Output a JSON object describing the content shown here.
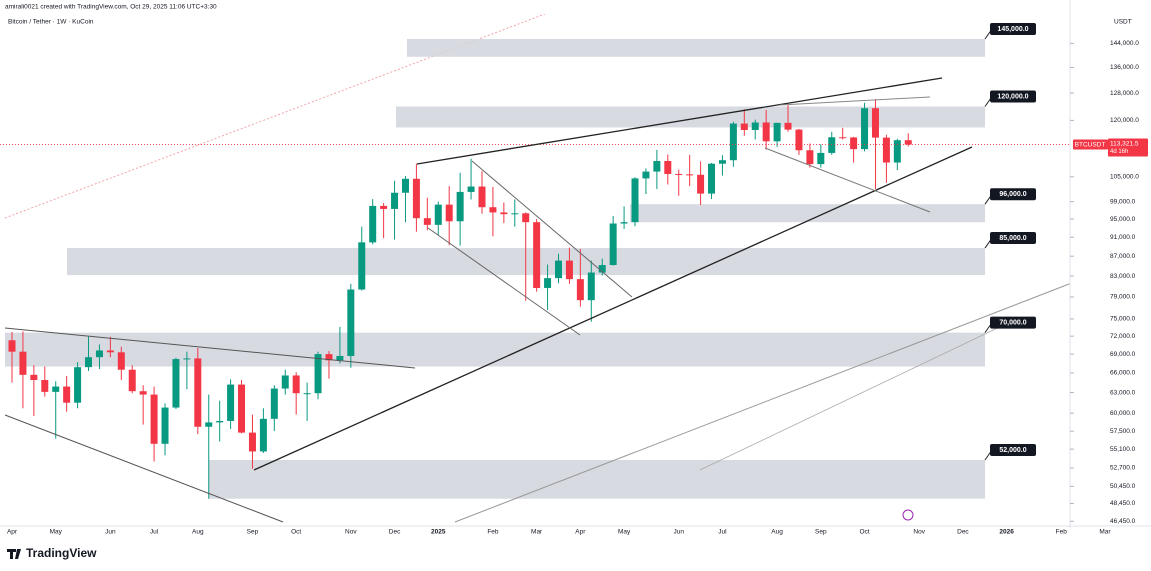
{
  "header": "amirali0021 created with TradingView.com, Oct 29, 2025 11:06 UTC+3:30",
  "brand": "TradingView",
  "chart_data": {
    "type": "candlestick",
    "title": "Bitcoin / Tether · 1W · KuCoin",
    "y_unit": "USDT",
    "symbol": "BTCUSDT",
    "last_price_label": "113,321.5",
    "countdown": "4d 16h",
    "log_scale": true,
    "colors": {
      "up": "#089981",
      "down": "#f23645",
      "zone": "#d1d4dc"
    },
    "ylim": [
      45500,
      154000
    ],
    "yticks": [
      {
        "value": 144000,
        "label": "144,000.0"
      },
      {
        "value": 136000,
        "label": "136,000.0"
      },
      {
        "value": 128000,
        "label": "128,000.0"
      },
      {
        "value": 120000,
        "label": "120,000.0"
      },
      {
        "value": 105000,
        "label": "105,000.0"
      },
      {
        "value": 99000,
        "label": "99,000.0"
      },
      {
        "value": 95000,
        "label": "95,000.0"
      },
      {
        "value": 91000,
        "label": "91,000.0"
      },
      {
        "value": 87000,
        "label": "87,000.0"
      },
      {
        "value": 83000,
        "label": "83,000.0"
      },
      {
        "value": 79000,
        "label": "79,000.0"
      },
      {
        "value": 75000,
        "label": "75,000.0"
      },
      {
        "value": 72000,
        "label": "72,000.0"
      },
      {
        "value": 69000,
        "label": "69,000.0"
      },
      {
        "value": 66000,
        "label": "66,000.0"
      },
      {
        "value": 63000,
        "label": "63,000.0"
      },
      {
        "value": 60000,
        "label": "60,000.0"
      },
      {
        "value": 57500,
        "label": "57,500.0"
      },
      {
        "value": 55100,
        "label": "55,100.0"
      },
      {
        "value": 52700,
        "label": "52,700.0"
      },
      {
        "value": 50450,
        "label": "50,450.0"
      },
      {
        "value": 48450,
        "label": "48,450.0"
      },
      {
        "value": 46450,
        "label": "46,450.0"
      }
    ],
    "levels": [
      {
        "value": 145000,
        "label": "145,000.0",
        "low": 139500,
        "high": 145500
      },
      {
        "value": 120000,
        "label": "120,000.0",
        "low": 118000,
        "high": 124000
      },
      {
        "value": 96000,
        "label": "96,000.0",
        "low": 94300,
        "high": 98400
      },
      {
        "value": 85000,
        "label": "85,000.0",
        "low": 83200,
        "high": 88700
      },
      {
        "value": 70000,
        "label": "70,000.0",
        "low": 67000,
        "high": 72600
      },
      {
        "value": 52000,
        "label": "52,000.0",
        "low": 49000,
        "high": 53700
      }
    ],
    "categories": [
      "Apr",
      null,
      null,
      null,
      "May",
      null,
      null,
      null,
      null,
      "Jun",
      null,
      null,
      null,
      "Jul",
      null,
      null,
      null,
      "Aug",
      null,
      null,
      null,
      null,
      "Sep",
      null,
      null,
      null,
      "Oct",
      null,
      null,
      null,
      null,
      "Nov",
      null,
      null,
      null,
      "Dec",
      null,
      null,
      null,
      "2025",
      null,
      null,
      null,
      null,
      "Feb",
      null,
      null,
      null,
      "Mar",
      null,
      null,
      null,
      "Apr",
      null,
      null,
      null,
      "May",
      null,
      null,
      null,
      null,
      "Jun",
      null,
      null,
      null,
      "Jul",
      null,
      null,
      null,
      null,
      "Aug",
      null,
      null,
      null,
      "Sep",
      null,
      null,
      null,
      "Oct",
      null,
      null,
      null,
      null,
      "Nov",
      null,
      null,
      null,
      "Dec",
      null,
      null,
      null,
      "2026",
      null,
      null,
      null,
      null,
      "Feb",
      null,
      null,
      null,
      "Mar"
    ],
    "open": [
      71300,
      69400,
      65700,
      64900,
      63100,
      63900,
      61500,
      66900,
      68500,
      69600,
      69300,
      66500,
      63200,
      62700,
      55800,
      60800,
      68200,
      68300,
      58100,
      58700,
      58900,
      64200,
      57300,
      54800,
      59200,
      63600,
      65600,
      62900,
      62900,
      69000,
      68000,
      68700,
      80400,
      89900,
      98000,
      97300,
      101100,
      104500,
      95200,
      93700,
      98300,
      94500,
      101300,
      102600,
      97700,
      96500,
      96100,
      96300,
      94300,
      80700,
      82600,
      86100,
      82400,
      78400,
      83700,
      85200,
      94000,
      94300,
      104600,
      106300,
      109000,
      105700,
      105600,
      105500,
      100900,
      108300,
      109200,
      119100,
      117300,
      119400,
      114200,
      119300,
      117400,
      111800,
      108200,
      111100,
      115300,
      115250,
      112100,
      123500,
      115200,
      108600,
      114500,
      null,
      null,
      null,
      null,
      null,
      null,
      null,
      null,
      null,
      null,
      null,
      null,
      null,
      null,
      null,
      null,
      null,
      null
    ],
    "high": [
      72700,
      72800,
      67200,
      67000,
      64700,
      65500,
      67700,
      71900,
      70600,
      71900,
      70200,
      67200,
      64100,
      63900,
      61400,
      68400,
      69400,
      70000,
      62700,
      61800,
      65000,
      64900,
      59800,
      60700,
      64100,
      66500,
      66100,
      64500,
      69400,
      69500,
      73600,
      81500,
      93300,
      99600,
      98700,
      104000,
      105200,
      108300,
      99900,
      99000,
      102700,
      106000,
      109600,
      106400,
      102500,
      98800,
      99500,
      96500,
      95000,
      85300,
      87500,
      88800,
      88500,
      86100,
      86500,
      95700,
      97900,
      104900,
      107100,
      111900,
      110700,
      106800,
      110600,
      108900,
      108500,
      110500,
      119600,
      123200,
      120200,
      123000,
      119300,
      124500,
      117600,
      113600,
      113400,
      116800,
      117900,
      115400,
      125100,
      126200,
      116000,
      114900,
      116400,
      null,
      null,
      null,
      null,
      null,
      null,
      null,
      null,
      null,
      null,
      null,
      null,
      null,
      null,
      null,
      null,
      null,
      null
    ],
    "low": [
      64500,
      60700,
      59600,
      62400,
      56500,
      60200,
      60700,
      66300,
      66600,
      68500,
      64900,
      62900,
      58400,
      53500,
      54300,
      60600,
      63500,
      57100,
      49000,
      56100,
      57800,
      57200,
      52600,
      54600,
      57500,
      62700,
      59800,
      58900,
      62000,
      65100,
      67500,
      66800,
      80200,
      89500,
      90800,
      90500,
      94300,
      92200,
      92500,
      91500,
      89300,
      89200,
      99500,
      96200,
      91200,
      94100,
      93300,
      78300,
      80000,
      76600,
      81600,
      81500,
      77200,
      74500,
      83100,
      85100,
      92800,
      93400,
      100800,
      102000,
      103100,
      100400,
      102700,
      98200,
      99600,
      105300,
      107500,
      115700,
      114700,
      112000,
      112700,
      116800,
      110600,
      107300,
      107300,
      110600,
      114700,
      108600,
      111500,
      102000,
      103500,
      106700,
      112800,
      null,
      null,
      null,
      null,
      null,
      null,
      null,
      null,
      null,
      null,
      null,
      null,
      null,
      null,
      null,
      null,
      null,
      null
    ],
    "close": [
      69400,
      65700,
      64900,
      63100,
      63900,
      61500,
      66900,
      68500,
      69600,
      69300,
      66500,
      63200,
      62700,
      55800,
      60800,
      68200,
      68300,
      58100,
      58700,
      58900,
      64200,
      57300,
      54800,
      59200,
      63600,
      65600,
      62900,
      62900,
      69000,
      68000,
      68700,
      80400,
      89900,
      98000,
      97300,
      101100,
      104500,
      95200,
      93700,
      98300,
      94500,
      101300,
      102600,
      97700,
      96500,
      96100,
      96300,
      94300,
      80700,
      82600,
      86100,
      82400,
      78400,
      83700,
      85200,
      94000,
      94300,
      104600,
      106300,
      109000,
      105700,
      105600,
      105500,
      100900,
      108300,
      109200,
      119100,
      117300,
      119400,
      114200,
      119300,
      117400,
      111800,
      108200,
      111100,
      115300,
      115250,
      112100,
      123500,
      115200,
      108600,
      114500,
      113321.5,
      null,
      null,
      null,
      null,
      null,
      null,
      null,
      null,
      null,
      null,
      null,
      null,
      null,
      null,
      null,
      null,
      null,
      null
    ]
  }
}
